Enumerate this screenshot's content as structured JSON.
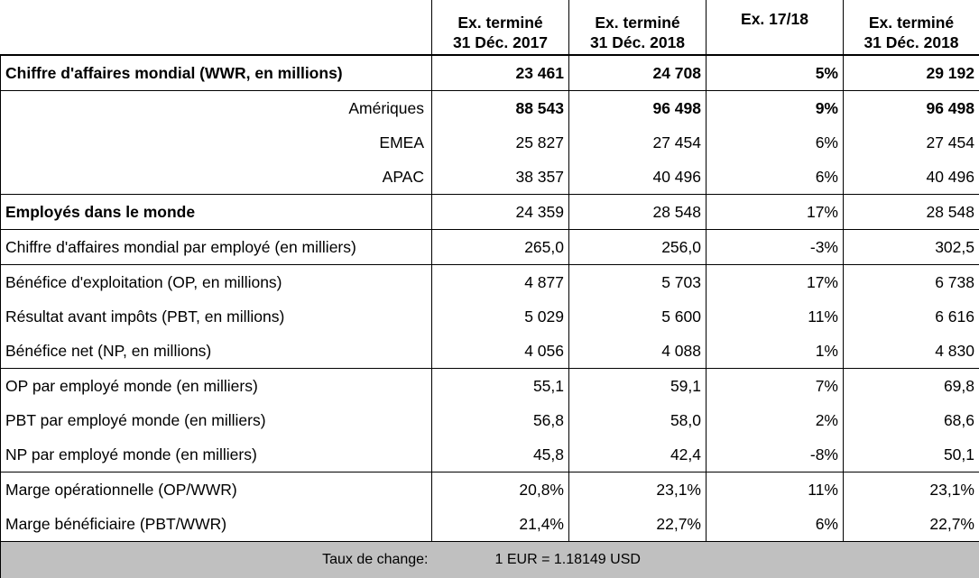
{
  "headers": {
    "col1": "Ex. terminé\n31 Déc. 2017",
    "col2": "Ex. terminé\n31 Déc. 2018",
    "col3": "Ex. 17/18",
    "col4": "Ex. terminé\n31 Déc. 2018"
  },
  "rows": [
    {
      "label": "Chiffre d'affaires mondial (WWR, en millions)",
      "v1": "23 461",
      "v2": "24 708",
      "v3": "5%",
      "v4": "29 192"
    },
    {
      "label": "Amériques",
      "v1": "88 543",
      "v2": "96 498",
      "v3": "9%",
      "v4": "96 498"
    },
    {
      "label": "EMEA",
      "v1": "25 827",
      "v2": "27 454",
      "v3": "6%",
      "v4": "27 454"
    },
    {
      "label": "APAC",
      "v1": "38 357",
      "v2": "40 496",
      "v3": "6%",
      "v4": "40 496"
    },
    {
      "label": "Employés dans le monde",
      "v1": "24 359",
      "v2": "28 548",
      "v3": "17%",
      "v4": "28 548"
    },
    {
      "label": "Chiffre d'affaires mondial par employé (en milliers)",
      "v1": "265,0",
      "v2": "256,0",
      "v3": "-3%",
      "v4": "302,5"
    },
    {
      "label": "Bénéfice d'exploitation (OP, en millions)",
      "v1": "4 877",
      "v2": "5 703",
      "v3": "17%",
      "v4": "6 738"
    },
    {
      "label": "Résultat avant impôts (PBT, en millions)",
      "v1": "5 029",
      "v2": "5 600",
      "v3": "11%",
      "v4": "6 616"
    },
    {
      "label": "Bénéfice net (NP, en millions)",
      "v1": "4 056",
      "v2": "4 088",
      "v3": "1%",
      "v4": "4 830"
    },
    {
      "label": "OP par employé monde (en milliers)",
      "v1": "55,1",
      "v2": "59,1",
      "v3": "7%",
      "v4": "69,8"
    },
    {
      "label": "PBT par employé monde (en milliers)",
      "v1": "56,8",
      "v2": "58,0",
      "v3": "2%",
      "v4": "68,6"
    },
    {
      "label": "NP par employé monde (en milliers)",
      "v1": "45,8",
      "v2": "42,4",
      "v3": "-8%",
      "v4": "50,1"
    },
    {
      "label": "Marge opérationnelle (OP/WWR)",
      "v1": "20,8%",
      "v2": "23,1%",
      "v3": "11%",
      "v4": "23,1%"
    },
    {
      "label": "Marge bénéficiaire (PBT/WWR)",
      "v1": "21,4%",
      "v2": "22,7%",
      "v3": "6%",
      "v4": "22,7%"
    }
  ],
  "footer": {
    "label": "Taux de change:",
    "value": "1 EUR =  1.18149 USD"
  }
}
